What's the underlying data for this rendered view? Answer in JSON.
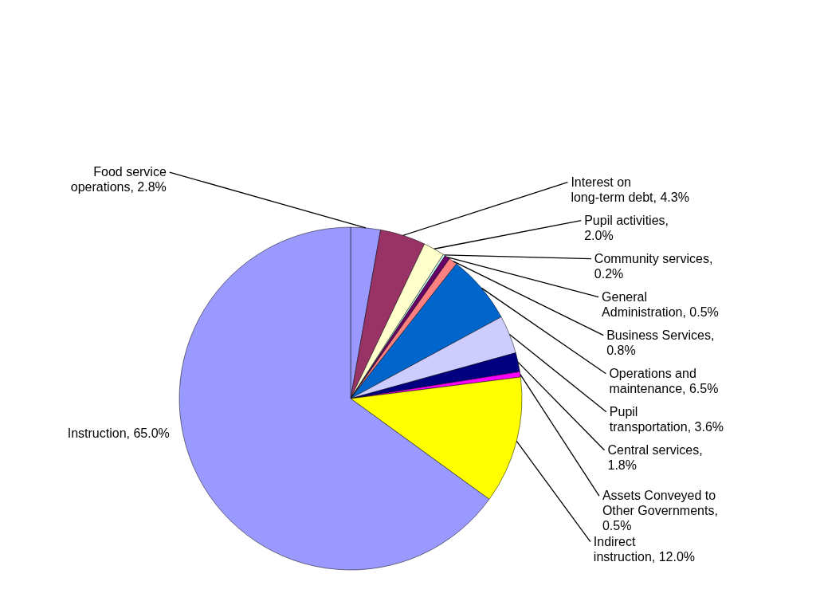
{
  "chart_data": {
    "type": "pie",
    "categories": [
      "Food service operations, 2.8%",
      "Interest on long-term debt, 4.3%",
      "Pupil activities, 2.0%",
      "Community services, 0.2%",
      "General Administration, 0.5%",
      "Business Services, 0.8%",
      "Operations and maintenance, 6.5%",
      "Pupil transportation, 3.6%",
      "Central services, 1.8%",
      "Assets Conveyed to Other Governments, 0.5%",
      "Indirect instruction, 12.0%",
      "Instruction, 65.0%"
    ],
    "values": [
      2.8,
      4.3,
      2.0,
      0.2,
      0.5,
      0.8,
      6.5,
      3.6,
      1.8,
      0.5,
      12.0,
      65.0
    ],
    "colors": [
      "#9999ff",
      "#993366",
      "#ffffcc",
      "#ccffff",
      "#660066",
      "#ff8080",
      "#0066cc",
      "#ccccff",
      "#000080",
      "#ff00ff",
      "#ffff00",
      "#9999ff"
    ]
  }
}
